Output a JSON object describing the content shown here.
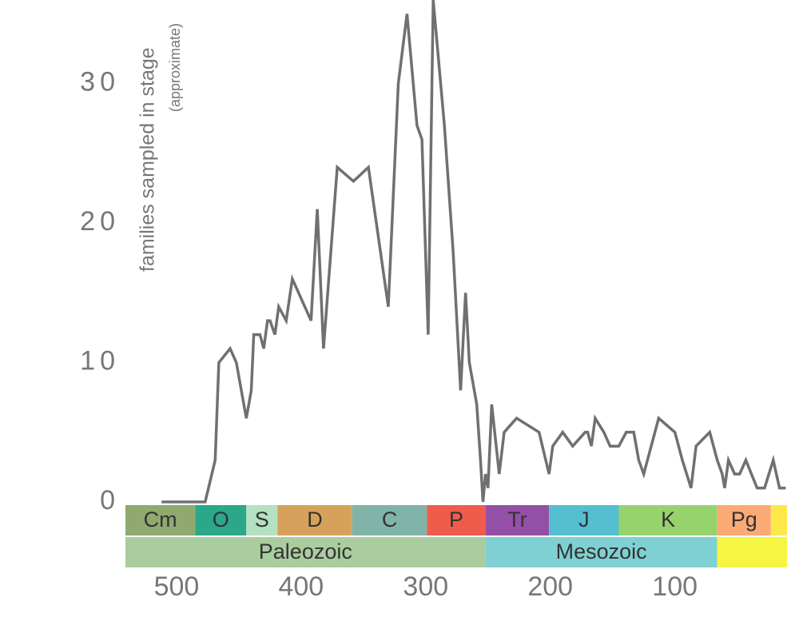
{
  "chart_data": {
    "type": "line",
    "y_label": "families sampled in stage",
    "y_sublabel": "(approximate)",
    "color": "#707070",
    "x": [
      512,
      477,
      469,
      466,
      457,
      452,
      444,
      440,
      438,
      433,
      430,
      427,
      425,
      421,
      418,
      412,
      407,
      392,
      387,
      382,
      371,
      358,
      346,
      330,
      322,
      315,
      307,
      303,
      298,
      294,
      285,
      278,
      272,
      268,
      265,
      259,
      256,
      254,
      252,
      250,
      247,
      241,
      237,
      227,
      209,
      201,
      198,
      190,
      182,
      172,
      170,
      167,
      164,
      157,
      152,
      145,
      139,
      133,
      129,
      125,
      113,
      100,
      94,
      87,
      83,
      72,
      66,
      62,
      60,
      57,
      52,
      48,
      43,
      34,
      28,
      21,
      16,
      11
    ],
    "values": [
      0,
      0,
      3,
      10,
      11,
      10,
      6,
      8,
      12,
      12,
      11,
      13,
      13,
      12,
      14,
      13,
      16,
      13,
      21,
      11,
      24,
      23,
      24,
      14,
      30,
      35,
      27,
      26,
      12,
      36,
      27,
      18,
      8,
      15,
      10,
      7,
      3,
      0,
      2,
      1,
      7,
      2,
      5,
      6,
      5,
      2,
      4,
      5,
      4,
      5,
      5,
      4,
      6,
      5,
      4,
      4,
      5,
      5,
      3,
      2,
      6,
      5,
      3,
      1,
      4,
      5,
      3,
      2,
      1,
      3,
      2,
      2,
      3,
      1,
      1,
      3,
      1,
      1
    ],
    "xlim": [
      541,
      10
    ],
    "xticks": [
      500,
      400,
      300,
      200,
      100
    ],
    "ylim": [
      0,
      36
    ],
    "yticks": [
      0,
      10,
      20,
      30
    ],
    "periods": [
      {
        "name": "Cm",
        "start": 541,
        "end": 485,
        "color": "#8fa96f"
      },
      {
        "name": "O",
        "start": 485,
        "end": 444,
        "color": "#2ba78a"
      },
      {
        "name": "S",
        "start": 444,
        "end": 419,
        "color": "#b4e1c2"
      },
      {
        "name": "D",
        "start": 419,
        "end": 359,
        "color": "#d6a25b"
      },
      {
        "name": "C",
        "start": 359,
        "end": 299,
        "color": "#80b4a9"
      },
      {
        "name": "P",
        "start": 299,
        "end": 252,
        "color": "#ef5c4b"
      },
      {
        "name": "Tr",
        "start": 252,
        "end": 201,
        "color": "#944fa6"
      },
      {
        "name": "J",
        "start": 201,
        "end": 145,
        "color": "#53bfd1"
      },
      {
        "name": "K",
        "start": 145,
        "end": 66,
        "color": "#97d36d"
      },
      {
        "name": "Pg",
        "start": 66,
        "end": 23,
        "color": "#fba975"
      },
      {
        "name": null,
        "start": 23,
        "end": 10,
        "color": "#fde84b"
      }
    ],
    "eras": [
      {
        "name": "Paleozoic",
        "start": 541,
        "end": 252,
        "color": "#a9cd9f"
      },
      {
        "name": "Mesozoic",
        "start": 252,
        "end": 66,
        "color": "#7fd0d2"
      },
      {
        "name": null,
        "start": 66,
        "end": 10,
        "color": "#f5f542"
      }
    ]
  }
}
